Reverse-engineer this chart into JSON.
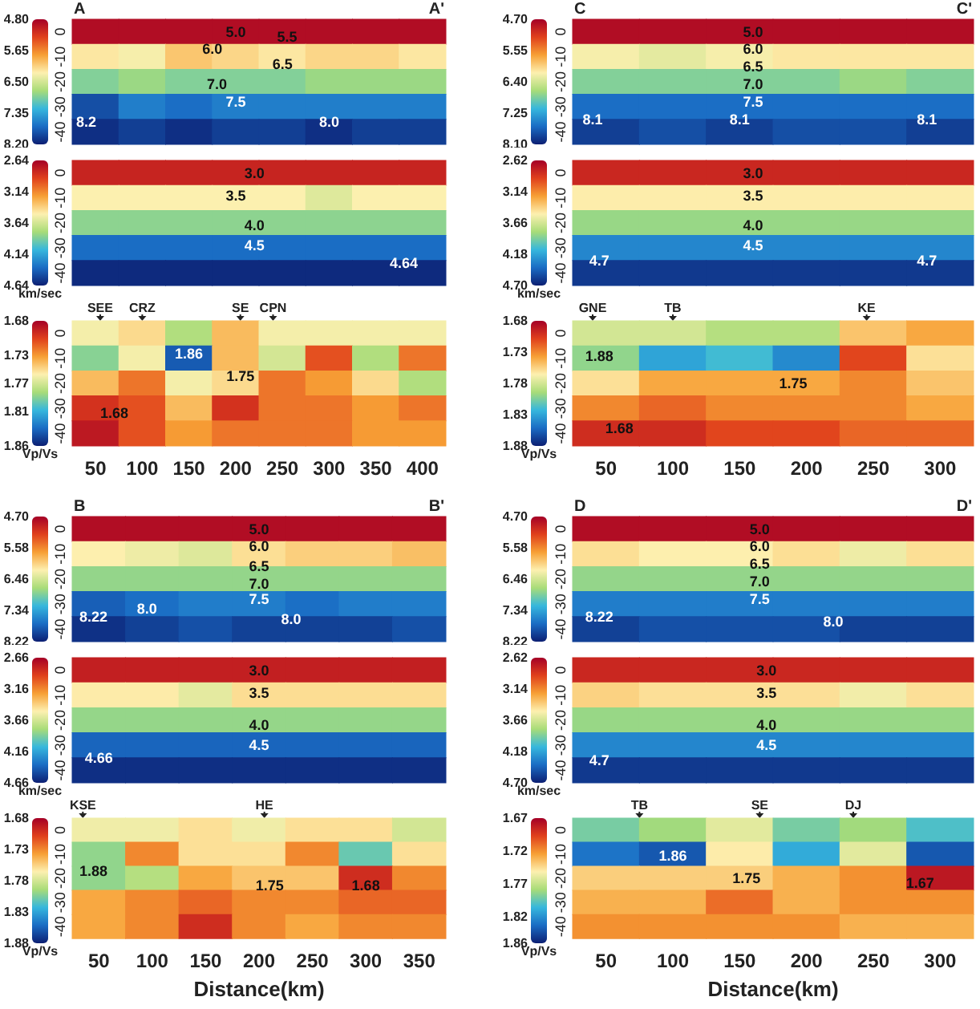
{
  "chart_data": [
    {
      "type": "heatmap",
      "categories": [
        "50",
        "100",
        "150",
        "200",
        "250",
        "300",
        "350",
        "400"
      ],
      "y_categories": [
        "0",
        "-10",
        "-20",
        "-30",
        "-40"
      ],
      "tick_labels": "y",
      "grid": false,
      "clim": [
        4.8,
        8.2
      ],
      "cticks": [
        {
          "value": 4.8,
          "label": "4.80"
        },
        {
          "value": 5.65,
          "label": "5.65"
        },
        {
          "value": 6.5,
          "label": "6.50"
        },
        {
          "value": 7.35,
          "label": "7.35"
        },
        {
          "value": 8.2,
          "label": "8.20"
        }
      ],
      "cells": [
        [
          4.9,
          4.9,
          4.9,
          4.9,
          4.9,
          4.9,
          4.9,
          4.9
        ],
        [
          6.2,
          6.3,
          6.0,
          6.1,
          6.2,
          6.1,
          6.1,
          6.2
        ],
        [
          6.9,
          6.8,
          6.9,
          6.9,
          6.9,
          6.8,
          6.8,
          6.8
        ],
        [
          7.9,
          7.6,
          7.7,
          7.6,
          7.6,
          7.6,
          7.6,
          7.6
        ],
        [
          8.1,
          8.0,
          8.1,
          8.0,
          8.0,
          8.1,
          8.0,
          8.0
        ]
      ],
      "annotations": [
        "A",
        "A'",
        "5.0",
        "5.5",
        "6.0",
        "6.5",
        "7.0",
        "7.5",
        "8.2",
        "8.0"
      ]
    },
    {
      "type": "heatmap",
      "categories": [
        "50",
        "100",
        "150",
        "200",
        "250",
        "300",
        "350",
        "400"
      ],
      "y_categories": [
        "0",
        "-10",
        "-20",
        "-30",
        "-40"
      ],
      "tick_labels": "y",
      "grid": false,
      "clim": [
        2.64,
        4.64
      ],
      "cticks": [
        {
          "value": 2.64,
          "label": "2.64"
        },
        {
          "value": 3.14,
          "label": "3.14"
        },
        {
          "value": 3.64,
          "label": "3.64"
        },
        {
          "value": 4.14,
          "label": "4.14"
        },
        {
          "value": 4.64,
          "label": "4.64"
        }
      ],
      "clabel": "km/sec",
      "cells": [
        [
          2.8,
          2.8,
          2.8,
          2.8,
          2.8,
          2.8,
          2.8,
          2.8
        ],
        [
          3.5,
          3.5,
          3.5,
          3.5,
          3.5,
          3.6,
          3.5,
          3.5
        ],
        [
          3.85,
          3.85,
          3.85,
          3.85,
          3.85,
          3.85,
          3.85,
          3.85
        ],
        [
          4.35,
          4.35,
          4.35,
          4.35,
          4.35,
          4.35,
          4.35,
          4.35
        ],
        [
          4.6,
          4.6,
          4.6,
          4.6,
          4.6,
          4.6,
          4.6,
          4.6
        ]
      ],
      "annotations": [
        "3.0",
        "3.5",
        "4.0",
        "4.5",
        "4.64"
      ]
    },
    {
      "type": "heatmap",
      "categories": [
        "50",
        "100",
        "150",
        "200",
        "250",
        "300",
        "350",
        "400"
      ],
      "y_categories": [
        "0",
        "-10",
        "-20",
        "-30",
        "-40"
      ],
      "grid": false,
      "clim": [
        1.68,
        1.86
      ],
      "cticks": [
        {
          "value": 1.68,
          "label": "1.68"
        },
        {
          "value": 1.73,
          "label": "1.73"
        },
        {
          "value": 1.77,
          "label": "1.77"
        },
        {
          "value": 1.81,
          "label": "1.81"
        },
        {
          "value": 1.86,
          "label": "1.86"
        }
      ],
      "clabel": "Vp/Vs",
      "cells": [
        [
          1.76,
          1.75,
          1.78,
          1.74,
          1.76,
          1.76,
          1.76,
          1.76
        ],
        [
          1.79,
          1.76,
          1.84,
          1.74,
          1.77,
          1.71,
          1.78,
          1.72
        ],
        [
          1.74,
          1.72,
          1.76,
          1.75,
          1.72,
          1.73,
          1.75,
          1.78
        ],
        [
          1.7,
          1.71,
          1.74,
          1.7,
          1.72,
          1.72,
          1.73,
          1.72
        ],
        [
          1.69,
          1.71,
          1.73,
          1.72,
          1.72,
          1.72,
          1.73,
          1.73
        ]
      ],
      "annotations": [
        "SEE",
        "CRZ",
        "SE",
        "CPN",
        "1.86",
        "1.75",
        "1.68"
      ]
    },
    {
      "type": "heatmap",
      "categories": [
        "50",
        "100",
        "150",
        "200",
        "250",
        "300"
      ],
      "y_categories": [
        "0",
        "-10",
        "-20",
        "-30",
        "-40"
      ],
      "tick_labels": "y",
      "grid": false,
      "clim": [
        4.7,
        8.1
      ],
      "cticks": [
        {
          "value": 4.7,
          "label": "4.70"
        },
        {
          "value": 5.55,
          "label": "5.55"
        },
        {
          "value": 6.4,
          "label": "6.40"
        },
        {
          "value": 7.25,
          "label": "7.25"
        },
        {
          "value": 8.1,
          "label": "8.10"
        }
      ],
      "cells": [
        [
          4.8,
          4.8,
          4.8,
          4.8,
          4.8,
          4.8
        ],
        [
          6.2,
          6.3,
          6.2,
          6.1,
          6.1,
          6.1
        ],
        [
          6.8,
          6.8,
          6.8,
          6.8,
          6.7,
          6.8
        ],
        [
          7.6,
          7.6,
          7.6,
          7.6,
          7.6,
          7.6
        ],
        [
          7.9,
          7.8,
          7.9,
          7.8,
          7.8,
          7.9
        ]
      ],
      "annotations": [
        "C",
        "C'",
        "5.0",
        "6.0",
        "6.5",
        "7.0",
        "7.5",
        "8.1",
        "8.1",
        "8.1"
      ]
    },
    {
      "type": "heatmap",
      "categories": [
        "50",
        "100",
        "150",
        "200",
        "250",
        "300"
      ],
      "y_categories": [
        "0",
        "-10",
        "-20",
        "-30",
        "-40"
      ],
      "tick_labels": "y",
      "grid": false,
      "clim": [
        2.62,
        4.7
      ],
      "cticks": [
        {
          "value": 2.62,
          "label": "2.62"
        },
        {
          "value": 3.14,
          "label": "3.14"
        },
        {
          "value": 3.66,
          "label": "3.66"
        },
        {
          "value": 4.18,
          "label": "4.18"
        },
        {
          "value": 4.7,
          "label": "4.70"
        }
      ],
      "clabel": "km/sec",
      "cells": [
        [
          2.8,
          2.8,
          2.8,
          2.8,
          2.8,
          2.8
        ],
        [
          3.5,
          3.5,
          3.5,
          3.5,
          3.5,
          3.5
        ],
        [
          3.85,
          3.85,
          3.85,
          3.85,
          3.85,
          3.85
        ],
        [
          4.3,
          4.3,
          4.3,
          4.3,
          4.3,
          4.3
        ],
        [
          4.6,
          4.6,
          4.6,
          4.6,
          4.6,
          4.6
        ]
      ],
      "annotations": [
        "3.0",
        "3.5",
        "4.0",
        "4.5",
        "4.7",
        "4.7"
      ]
    },
    {
      "type": "heatmap",
      "categories": [
        "50",
        "100",
        "150",
        "200",
        "250",
        "300"
      ],
      "y_categories": [
        "0",
        "-10",
        "-20",
        "-30",
        "-40"
      ],
      "grid": false,
      "clim": [
        1.68,
        1.88
      ],
      "cticks": [
        {
          "value": 1.68,
          "label": "1.68"
        },
        {
          "value": 1.73,
          "label": "1.73"
        },
        {
          "value": 1.78,
          "label": "1.78"
        },
        {
          "value": 1.83,
          "label": "1.83"
        },
        {
          "value": 1.88,
          "label": "1.88"
        }
      ],
      "clabel": "Vp/Vs",
      "cells": [
        [
          1.78,
          1.78,
          1.79,
          1.79,
          1.75,
          1.74
        ],
        [
          1.8,
          1.83,
          1.82,
          1.84,
          1.71,
          1.76
        ],
        [
          1.76,
          1.74,
          1.74,
          1.74,
          1.73,
          1.75
        ],
        [
          1.73,
          1.72,
          1.73,
          1.73,
          1.73,
          1.74
        ],
        [
          1.7,
          1.7,
          1.71,
          1.71,
          1.72,
          1.72
        ]
      ],
      "annotations": [
        "GNE",
        "TB",
        "KE",
        "1.88",
        "1.75",
        "1.68"
      ]
    },
    {
      "type": "heatmap",
      "categories": [
        "50",
        "100",
        "150",
        "200",
        "250",
        "300",
        "350"
      ],
      "y_categories": [
        "0",
        "-10",
        "-20",
        "-30",
        "-40"
      ],
      "tick_labels": "y",
      "grid": false,
      "clim": [
        4.7,
        8.22
      ],
      "cticks": [
        {
          "value": 4.7,
          "label": "4.70"
        },
        {
          "value": 5.58,
          "label": "5.58"
        },
        {
          "value": 6.46,
          "label": "6.46"
        },
        {
          "value": 7.34,
          "label": "7.34"
        },
        {
          "value": 8.22,
          "label": "8.22"
        }
      ],
      "cells": [
        [
          4.8,
          4.8,
          4.8,
          4.8,
          4.8,
          4.8,
          4.8
        ],
        [
          6.2,
          6.3,
          6.4,
          6.1,
          6.0,
          6.0,
          5.9
        ],
        [
          6.8,
          6.8,
          6.8,
          6.8,
          6.8,
          6.8,
          6.8
        ],
        [
          7.8,
          7.7,
          7.6,
          7.6,
          7.7,
          7.6,
          7.6
        ],
        [
          8.1,
          8.0,
          7.9,
          8.0,
          8.0,
          8.0,
          7.9
        ]
      ],
      "annotations": [
        "B",
        "B'",
        "5.0",
        "6.0",
        "6.5",
        "7.0",
        "7.5",
        "8.22",
        "8.0",
        "8.0"
      ]
    },
    {
      "type": "heatmap",
      "categories": [
        "50",
        "100",
        "150",
        "200",
        "250",
        "300",
        "350"
      ],
      "y_categories": [
        "0",
        "-10",
        "-20",
        "-30",
        "-40"
      ],
      "tick_labels": "y",
      "grid": false,
      "clim": [
        2.66,
        4.66
      ],
      "cticks": [
        {
          "value": 2.66,
          "label": "2.66"
        },
        {
          "value": 3.16,
          "label": "3.16"
        },
        {
          "value": 3.66,
          "label": "3.66"
        },
        {
          "value": 4.16,
          "label": "4.16"
        },
        {
          "value": 4.66,
          "label": "4.66"
        }
      ],
      "clabel": "km/sec",
      "cells": [
        [
          2.8,
          2.8,
          2.8,
          2.8,
          2.8,
          2.8,
          2.8
        ],
        [
          3.5,
          3.5,
          3.6,
          3.45,
          3.45,
          3.45,
          3.45
        ],
        [
          3.85,
          3.85,
          3.85,
          3.85,
          3.85,
          3.85,
          3.85
        ],
        [
          4.4,
          4.4,
          4.4,
          4.4,
          4.4,
          4.4,
          4.4
        ],
        [
          4.6,
          4.6,
          4.6,
          4.6,
          4.6,
          4.6,
          4.6
        ]
      ],
      "annotations": [
        "3.0",
        "3.5",
        "4.0",
        "4.5",
        "4.66"
      ]
    },
    {
      "type": "heatmap",
      "categories": [
        "50",
        "100",
        "150",
        "200",
        "250",
        "300",
        "350"
      ],
      "y_categories": [
        "0",
        "-10",
        "-20",
        "-30",
        "-40"
      ],
      "grid": false,
      "xlabel": "Distance(km)",
      "clim": [
        1.68,
        1.88
      ],
      "cticks": [
        {
          "value": 1.68,
          "label": "1.68"
        },
        {
          "value": 1.73,
          "label": "1.73"
        },
        {
          "value": 1.78,
          "label": "1.78"
        },
        {
          "value": 1.83,
          "label": "1.83"
        },
        {
          "value": 1.88,
          "label": "1.88"
        }
      ],
      "clabel": "Vp/Vs",
      "cells": [
        [
          1.77,
          1.77,
          1.76,
          1.77,
          1.76,
          1.76,
          1.78
        ],
        [
          1.8,
          1.73,
          1.76,
          1.76,
          1.73,
          1.81,
          1.76
        ],
        [
          1.8,
          1.79,
          1.74,
          1.75,
          1.75,
          1.7,
          1.73
        ],
        [
          1.74,
          1.73,
          1.72,
          1.73,
          1.73,
          1.72,
          1.72
        ],
        [
          1.74,
          1.73,
          1.7,
          1.73,
          1.74,
          1.73,
          1.73
        ]
      ],
      "annotations": [
        "KSE",
        "HE",
        "1.88",
        "1.75",
        "1.68"
      ]
    },
    {
      "type": "heatmap",
      "categories": [
        "50",
        "100",
        "150",
        "200",
        "250",
        "300"
      ],
      "y_categories": [
        "0",
        "-10",
        "-20",
        "-30",
        "-40"
      ],
      "tick_labels": "y",
      "grid": false,
      "clim": [
        4.7,
        8.22
      ],
      "cticks": [
        {
          "value": 4.7,
          "label": "4.70"
        },
        {
          "value": 5.58,
          "label": "5.58"
        },
        {
          "value": 6.46,
          "label": "6.46"
        },
        {
          "value": 7.34,
          "label": "7.34"
        },
        {
          "value": 8.22,
          "label": "8.22"
        }
      ],
      "cells": [
        [
          4.8,
          4.8,
          4.8,
          4.8,
          4.8,
          4.8
        ],
        [
          6.1,
          6.2,
          6.2,
          6.1,
          6.3,
          6.1
        ],
        [
          6.8,
          6.8,
          6.8,
          6.8,
          6.8,
          6.8
        ],
        [
          7.6,
          7.6,
          7.6,
          7.6,
          7.6,
          7.6
        ],
        [
          8.0,
          7.9,
          7.9,
          7.9,
          8.0,
          8.0
        ]
      ],
      "annotations": [
        "D",
        "D'",
        "5.0",
        "6.0",
        "6.5",
        "7.0",
        "7.5",
        "8.22",
        "8.0"
      ]
    },
    {
      "type": "heatmap",
      "categories": [
        "50",
        "100",
        "150",
        "200",
        "250",
        "300"
      ],
      "y_categories": [
        "0",
        "-10",
        "-20",
        "-30",
        "-40"
      ],
      "tick_labels": "y",
      "grid": false,
      "clim": [
        2.62,
        4.7
      ],
      "cticks": [
        {
          "value": 2.62,
          "label": "2.62"
        },
        {
          "value": 3.14,
          "label": "3.14"
        },
        {
          "value": 3.66,
          "label": "3.66"
        },
        {
          "value": 4.18,
          "label": "4.18"
        },
        {
          "value": 4.7,
          "label": "4.70"
        }
      ],
      "clabel": "km/sec",
      "cells": [
        [
          2.8,
          2.8,
          2.8,
          2.8,
          2.8,
          2.8
        ],
        [
          3.4,
          3.45,
          3.45,
          3.45,
          3.55,
          3.45
        ],
        [
          3.85,
          3.85,
          3.85,
          3.85,
          3.85,
          3.85
        ],
        [
          4.3,
          4.3,
          4.3,
          4.3,
          4.3,
          4.3
        ],
        [
          4.6,
          4.6,
          4.6,
          4.6,
          4.6,
          4.6
        ]
      ],
      "annotations": [
        "3.0",
        "3.5",
        "4.0",
        "4.5",
        "4.7"
      ]
    },
    {
      "type": "heatmap",
      "categories": [
        "50",
        "100",
        "150",
        "200",
        "250",
        "300"
      ],
      "y_categories": [
        "0",
        "-10",
        "-20",
        "-30",
        "-40"
      ],
      "grid": false,
      "xlabel": "Distance(km)",
      "clim": [
        1.67,
        1.86
      ],
      "cticks": [
        {
          "value": 1.67,
          "label": "1.67"
        },
        {
          "value": 1.72,
          "label": "1.72"
        },
        {
          "value": 1.77,
          "label": "1.77"
        },
        {
          "value": 1.82,
          "label": "1.82"
        },
        {
          "value": 1.86,
          "label": "1.86"
        }
      ],
      "clabel": "Vp/Vs",
      "cells": [
        [
          1.79,
          1.78,
          1.76,
          1.79,
          1.78,
          1.8
        ],
        [
          1.83,
          1.84,
          1.75,
          1.81,
          1.76,
          1.84
        ],
        [
          1.74,
          1.74,
          1.74,
          1.73,
          1.72,
          1.68
        ],
        [
          1.73,
          1.73,
          1.71,
          1.73,
          1.72,
          1.72
        ],
        [
          1.72,
          1.72,
          1.72,
          1.72,
          1.73,
          1.73
        ]
      ],
      "annotations": [
        "TB",
        "SE",
        "DJ",
        "1.86",
        "1.75",
        "1.67"
      ]
    }
  ]
}
